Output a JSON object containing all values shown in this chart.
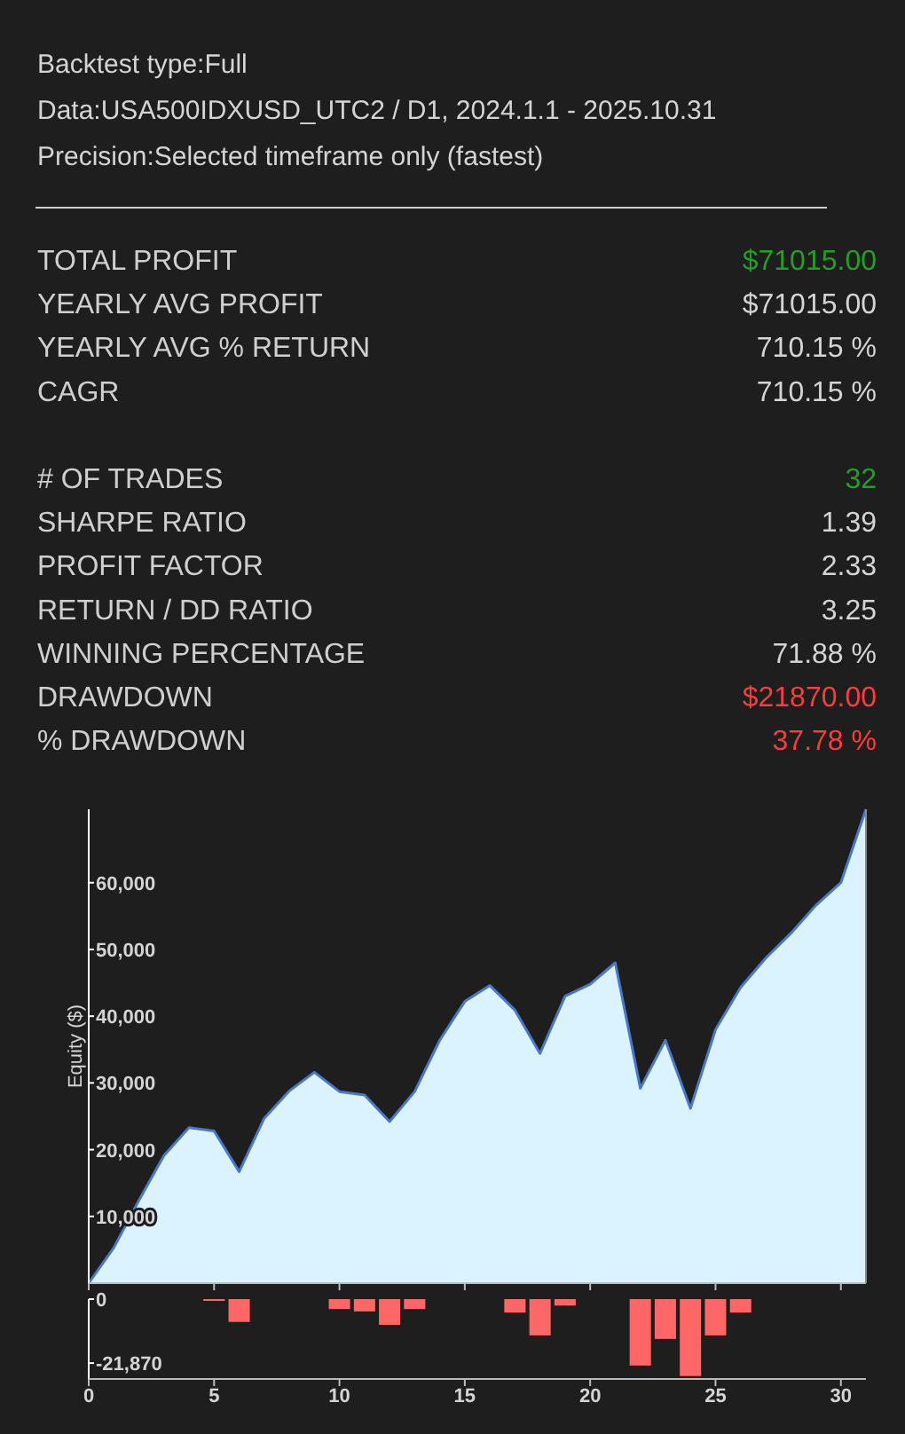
{
  "chart_data": [
    {
      "type": "other",
      "title": "Backtest type:Full",
      "annotations": [
        "Data:USA500IDXUSD_UTC2 / D1, 2024.1.1 - 2025.10.31",
        "Precision:Selected timeframe only (fastest)"
      ],
      "categories": [
        "TOTAL PROFIT",
        "YEARLY AVG PROFIT",
        "YEARLY AVG % RETURN",
        "CAGR",
        null,
        "# OF TRADES",
        "SHARPE RATIO",
        "PROFIT FACTOR",
        "RETURN / DD RATIO",
        "WINNING PERCENTAGE",
        "DRAWDOWN",
        "% DRAWDOWN"
      ],
      "value_labels": [
        "$71015.00",
        "$71015.00",
        "710.15 %",
        "710.15 %",
        null,
        "32",
        "1.39",
        "2.33",
        "3.25",
        "71.88 %",
        "$21870.00",
        "37.78 %"
      ],
      "colors": [
        "#22a022",
        "#d4d4d4",
        "#d4d4d4",
        "#d4d4d4",
        "#d4d4d4",
        "#22a022",
        "#d4d4d4",
        "#d4d4d4",
        "#d4d4d4",
        "#d4d4d4",
        "#ff3c3c",
        "#ff3c3c"
      ]
    },
    {
      "type": "area",
      "ylabel": "Equity ($)",
      "x": [
        0,
        1,
        2,
        3,
        4,
        5,
        6,
        7,
        8,
        9,
        10,
        11,
        12,
        13,
        14,
        15,
        16,
        17,
        18,
        19,
        20,
        21,
        22,
        23,
        24,
        25,
        26,
        27,
        28,
        29,
        30,
        31
      ],
      "values": [
        0,
        5300,
        12400,
        19100,
        23300,
        22800,
        16700,
        24700,
        28800,
        31600,
        28700,
        28200,
        24200,
        28700,
        36400,
        42200,
        44600,
        40900,
        34400,
        43000,
        44800,
        48000,
        29200,
        36400,
        26200,
        38000,
        44300,
        48700,
        52400,
        56600,
        60000,
        71000
      ],
      "color": "#dbf3ff",
      "xlim": [
        0,
        31
      ],
      "xticks": [
        0,
        5,
        10,
        15,
        20,
        25,
        30
      ],
      "ylim": [
        0,
        71000
      ],
      "yticks": [
        {
          "value": 10000,
          "label": "10,000"
        },
        {
          "value": 20000,
          "label": "20,000"
        },
        {
          "value": 30000,
          "label": "30,000"
        },
        {
          "value": 40000,
          "label": "40,000"
        },
        {
          "value": 50000,
          "label": "50,000"
        },
        {
          "value": 60000,
          "label": "60,000"
        }
      ],
      "tick_labels": "y"
    },
    {
      "type": "bar",
      "x": [
        0,
        1,
        2,
        3,
        4,
        5,
        6,
        7,
        8,
        9,
        10,
        11,
        12,
        13,
        14,
        15,
        16,
        17,
        18,
        19,
        20,
        21,
        22,
        23,
        24,
        25,
        26,
        27,
        28,
        29,
        30,
        31
      ],
      "values": [
        0,
        0,
        0,
        0,
        0,
        -300,
        -7800,
        0,
        0,
        0,
        -3400,
        -4200,
        -8800,
        -3400,
        0,
        0,
        0,
        -4600,
        -12400,
        -2200,
        0,
        0,
        -22700,
        -13600,
        -26300,
        -12400,
        -4600,
        0,
        0,
        0,
        0,
        0
      ],
      "color": "#ff6666",
      "xlim": [
        0,
        31
      ],
      "xticks": [
        0,
        5,
        10,
        15,
        20,
        25,
        30
      ],
      "ylim": [
        -27300,
        0
      ],
      "yticks": [
        0,
        {
          "value": -21870,
          "label": "-21,870"
        }
      ]
    }
  ]
}
